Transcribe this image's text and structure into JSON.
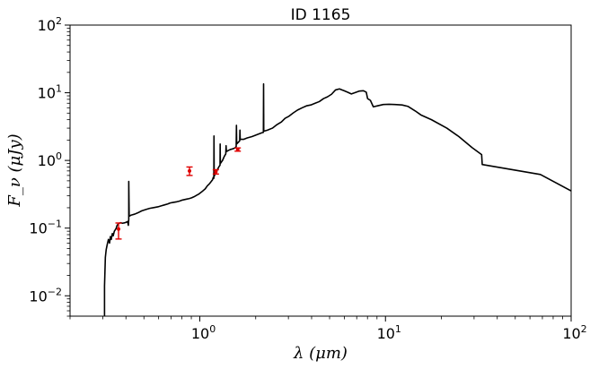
{
  "chart_data": {
    "type": "line",
    "title": "ID 1165",
    "xlabel": "λ (μm)",
    "ylabel": "F_ν (μJy)",
    "xscale": "log",
    "yscale": "log",
    "xlim": [
      0.2,
      100
    ],
    "ylim": [
      0.005,
      100
    ],
    "x_ticks": [
      {
        "value": 1,
        "base": "10",
        "exp": "0"
      },
      {
        "value": 10,
        "base": "10",
        "exp": "1"
      },
      {
        "value": 100,
        "base": "10",
        "exp": "2"
      }
    ],
    "y_ticks": [
      {
        "value": 0.01,
        "base": "10",
        "exp": "−2"
      },
      {
        "value": 0.1,
        "base": "10",
        "exp": "−1"
      },
      {
        "value": 1,
        "base": "10",
        "exp": "0"
      },
      {
        "value": 10,
        "base": "10",
        "exp": "1"
      },
      {
        "value": 100,
        "base": "10",
        "exp": "2"
      }
    ],
    "grid": false,
    "model": {
      "color": "#000000",
      "points": [
        [
          0.3067,
          0.0043
        ],
        [
          0.3067,
          0.014
        ],
        [
          0.3099,
          0.037
        ],
        [
          0.3131,
          0.048
        ],
        [
          0.3175,
          0.058
        ],
        [
          0.3219,
          0.068
        ],
        [
          0.3264,
          0.06
        ],
        [
          0.3298,
          0.075
        ],
        [
          0.3333,
          0.068
        ],
        [
          0.338,
          0.083
        ],
        [
          0.3415,
          0.077
        ],
        [
          0.3464,
          0.09
        ],
        [
          0.3537,
          0.098
        ],
        [
          0.3587,
          0.11
        ],
        [
          0.365,
          0.117
        ],
        [
          0.374,
          0.12
        ],
        [
          0.3832,
          0.118
        ],
        [
          0.3955,
          0.12
        ],
        [
          0.4084,
          0.125
        ],
        [
          0.4122,
          0.11
        ],
        [
          0.4143,
          0.135
        ],
        [
          0.4143,
          0.49
        ],
        [
          0.4164,
          0.15
        ],
        [
          0.4278,
          0.156
        ],
        [
          0.4462,
          0.161
        ],
        [
          0.4631,
          0.168
        ],
        [
          0.487,
          0.18
        ],
        [
          0.5106,
          0.188
        ],
        [
          0.5369,
          0.196
        ],
        [
          0.5646,
          0.201
        ],
        [
          0.5938,
          0.206
        ],
        [
          0.6186,
          0.213
        ],
        [
          0.6444,
          0.22
        ],
        [
          0.6713,
          0.227
        ],
        [
          0.6922,
          0.235
        ],
        [
          0.721,
          0.24
        ],
        [
          0.7511,
          0.245
        ],
        [
          0.7745,
          0.25
        ],
        [
          0.7987,
          0.258
        ],
        [
          0.8236,
          0.263
        ],
        [
          0.8492,
          0.268
        ],
        [
          0.8757,
          0.273
        ],
        [
          0.903,
          0.28
        ],
        [
          0.9311,
          0.291
        ],
        [
          0.9601,
          0.305
        ],
        [
          0.99,
          0.32
        ],
        [
          1.026,
          0.345
        ],
        [
          1.069,
          0.38
        ],
        [
          1.097,
          0.42
        ],
        [
          1.125,
          0.45
        ],
        [
          1.153,
          0.49
        ],
        [
          1.172,
          0.52
        ],
        [
          1.181,
          0.56
        ],
        [
          1.19,
          0.545
        ],
        [
          1.192,
          2.3
        ],
        [
          1.195,
          0.58
        ],
        [
          1.2,
          0.6
        ],
        [
          1.21,
          0.64
        ],
        [
          1.234,
          0.7
        ],
        [
          1.265,
          0.8
        ],
        [
          1.285,
          0.85
        ],
        [
          1.287,
          1.75
        ],
        [
          1.29,
          0.9
        ],
        [
          1.325,
          1.0
        ],
        [
          1.355,
          1.15
        ],
        [
          1.38,
          1.25
        ],
        [
          1.385,
          1.65
        ],
        [
          1.39,
          1.35
        ],
        [
          1.422,
          1.4
        ],
        [
          1.46,
          1.45
        ],
        [
          1.5,
          1.48
        ],
        [
          1.54,
          1.52
        ],
        [
          1.57,
          1.6
        ],
        [
          1.575,
          3.3
        ],
        [
          1.58,
          1.75
        ],
        [
          1.61,
          1.85
        ],
        [
          1.64,
          1.95
        ],
        [
          1.645,
          2.8
        ],
        [
          1.65,
          2.05
        ],
        [
          1.72,
          2.05
        ],
        [
          1.8,
          2.15
        ],
        [
          1.91,
          2.25
        ],
        [
          2.03,
          2.4
        ],
        [
          2.15,
          2.55
        ],
        [
          2.2,
          2.6
        ],
        [
          2.205,
          13.5
        ],
        [
          2.21,
          2.7
        ],
        [
          2.31,
          2.8
        ],
        [
          2.46,
          3.0
        ],
        [
          2.59,
          3.35
        ],
        [
          2.75,
          3.7
        ],
        [
          2.88,
          4.2
        ],
        [
          3.02,
          4.5
        ],
        [
          3.19,
          5.05
        ],
        [
          3.36,
          5.55
        ],
        [
          3.56,
          6.0
        ],
        [
          3.75,
          6.4
        ],
        [
          3.96,
          6.6
        ],
        [
          4.18,
          7.0
        ],
        [
          4.4,
          7.4
        ],
        [
          4.64,
          8.2
        ],
        [
          4.87,
          8.7
        ],
        [
          5.12,
          9.5
        ],
        [
          5.38,
          11.0
        ],
        [
          5.65,
          11.4
        ],
        [
          5.94,
          10.8
        ],
        [
          6.24,
          10.2
        ],
        [
          6.55,
          9.6
        ],
        [
          6.89,
          10.1
        ],
        [
          7.24,
          10.6
        ],
        [
          7.61,
          10.7
        ],
        [
          7.88,
          10.2
        ],
        [
          8.01,
          8.2
        ],
        [
          8.3,
          7.7
        ],
        [
          8.6,
          6.2
        ],
        [
          9.05,
          6.4
        ],
        [
          9.73,
          6.7
        ],
        [
          10.45,
          6.75
        ],
        [
          11.23,
          6.7
        ],
        [
          12.28,
          6.6
        ],
        [
          13.2,
          6.3
        ],
        [
          14.44,
          5.4
        ],
        [
          15.52,
          4.7
        ],
        [
          17.68,
          4.0
        ],
        [
          21.4,
          3.0
        ],
        [
          24.85,
          2.25
        ],
        [
          29.25,
          1.55
        ],
        [
          32.95,
          1.22
        ],
        [
          33.2,
          0.87
        ],
        [
          68.29,
          0.62
        ],
        [
          100.0,
          0.355
        ]
      ]
    },
    "observations": {
      "color": "#e00000",
      "points": [
        {
          "x": 0.365,
          "y": 0.097,
          "yerr_low": 0.028,
          "yerr_high": 0.022
        },
        {
          "x": 0.88,
          "y": 0.7,
          "yerr_low": 0.1,
          "yerr_high": 0.1
        },
        {
          "x": 1.22,
          "y": 0.68,
          "yerr_low": 0.05,
          "yerr_high": 0.05
        },
        {
          "x": 1.6,
          "y": 1.45,
          "yerr_low": 0.08,
          "yerr_high": 0.08
        }
      ]
    }
  }
}
